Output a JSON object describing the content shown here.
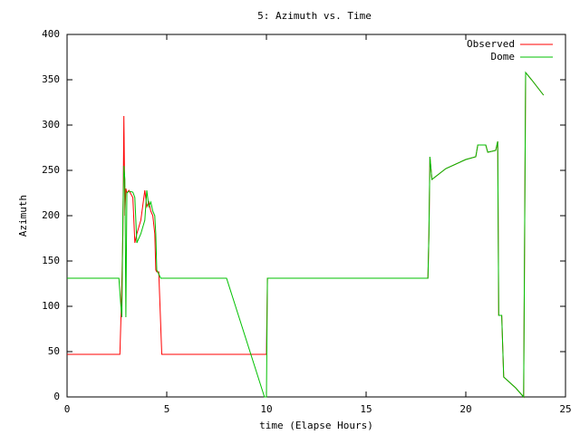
{
  "chart_data": {
    "type": "line",
    "title": "5: Azimuth vs. Time",
    "x_label": "time (Elapse Hours)",
    "y_label": "Azimuth",
    "xlim": [
      0,
      25
    ],
    "xticks": [
      0,
      5,
      10,
      15,
      20,
      25
    ],
    "ylim": [
      0,
      400
    ],
    "yticks": [
      0,
      50,
      100,
      150,
      200,
      250,
      300,
      350,
      400
    ],
    "grid": false,
    "legend": "top-right",
    "series": [
      {
        "name": "Observed",
        "color": "#ff0000",
        "x": [
          0,
          2.65,
          2.72,
          2.8,
          2.85,
          2.9,
          2.95,
          3.0,
          3.1,
          3.3,
          3.4,
          3.5,
          3.7,
          3.9,
          4.0,
          4.1,
          4.2,
          4.3,
          4.4,
          4.45,
          4.5,
          4.6,
          4.75,
          4.8,
          10.0,
          10.05,
          18.1,
          18.15,
          18.2,
          18.3,
          19.0,
          20.0,
          20.5,
          20.6,
          21.0,
          21.1,
          21.5,
          21.6,
          21.65,
          21.8,
          21.9,
          22.5,
          22.9,
          23.0,
          23.3,
          23.9
        ],
        "values": [
          47,
          47,
          100,
          180,
          310,
          200,
          230,
          225,
          228,
          220,
          170,
          180,
          195,
          228,
          210,
          215,
          205,
          200,
          180,
          140,
          138,
          138,
          47,
          47,
          47,
          131,
          131,
          180,
          265,
          240,
          252,
          262,
          265,
          278,
          278,
          270,
          272,
          282,
          90,
          90,
          22,
          10,
          0,
          358,
          350,
          333
        ]
      },
      {
        "name": "Dome",
        "color": "#00c000",
        "x": [
          0,
          2.6,
          2.7,
          2.75,
          2.8,
          2.85,
          2.9,
          2.95,
          3.0,
          3.1,
          3.3,
          3.4,
          3.5,
          3.7,
          3.9,
          4.0,
          4.1,
          4.2,
          4.3,
          4.4,
          4.45,
          4.5,
          4.7,
          8.0,
          9.9,
          10.0,
          10.05,
          18.1,
          18.15,
          18.2,
          18.3,
          19.0,
          20.0,
          20.5,
          20.6,
          21.0,
          21.1,
          21.5,
          21.6,
          21.65,
          21.8,
          21.9,
          22.5,
          22.9,
          23.0,
          23.3,
          23.9
        ],
        "values": [
          131,
          131,
          100,
          88,
          200,
          255,
          240,
          88,
          225,
          227,
          226,
          220,
          170,
          180,
          195,
          228,
          210,
          215,
          205,
          200,
          180,
          140,
          131,
          131,
          0,
          0,
          131,
          131,
          180,
          265,
          240,
          252,
          262,
          265,
          278,
          278,
          270,
          272,
          282,
          90,
          90,
          22,
          10,
          0,
          358,
          350,
          333
        ]
      }
    ]
  }
}
